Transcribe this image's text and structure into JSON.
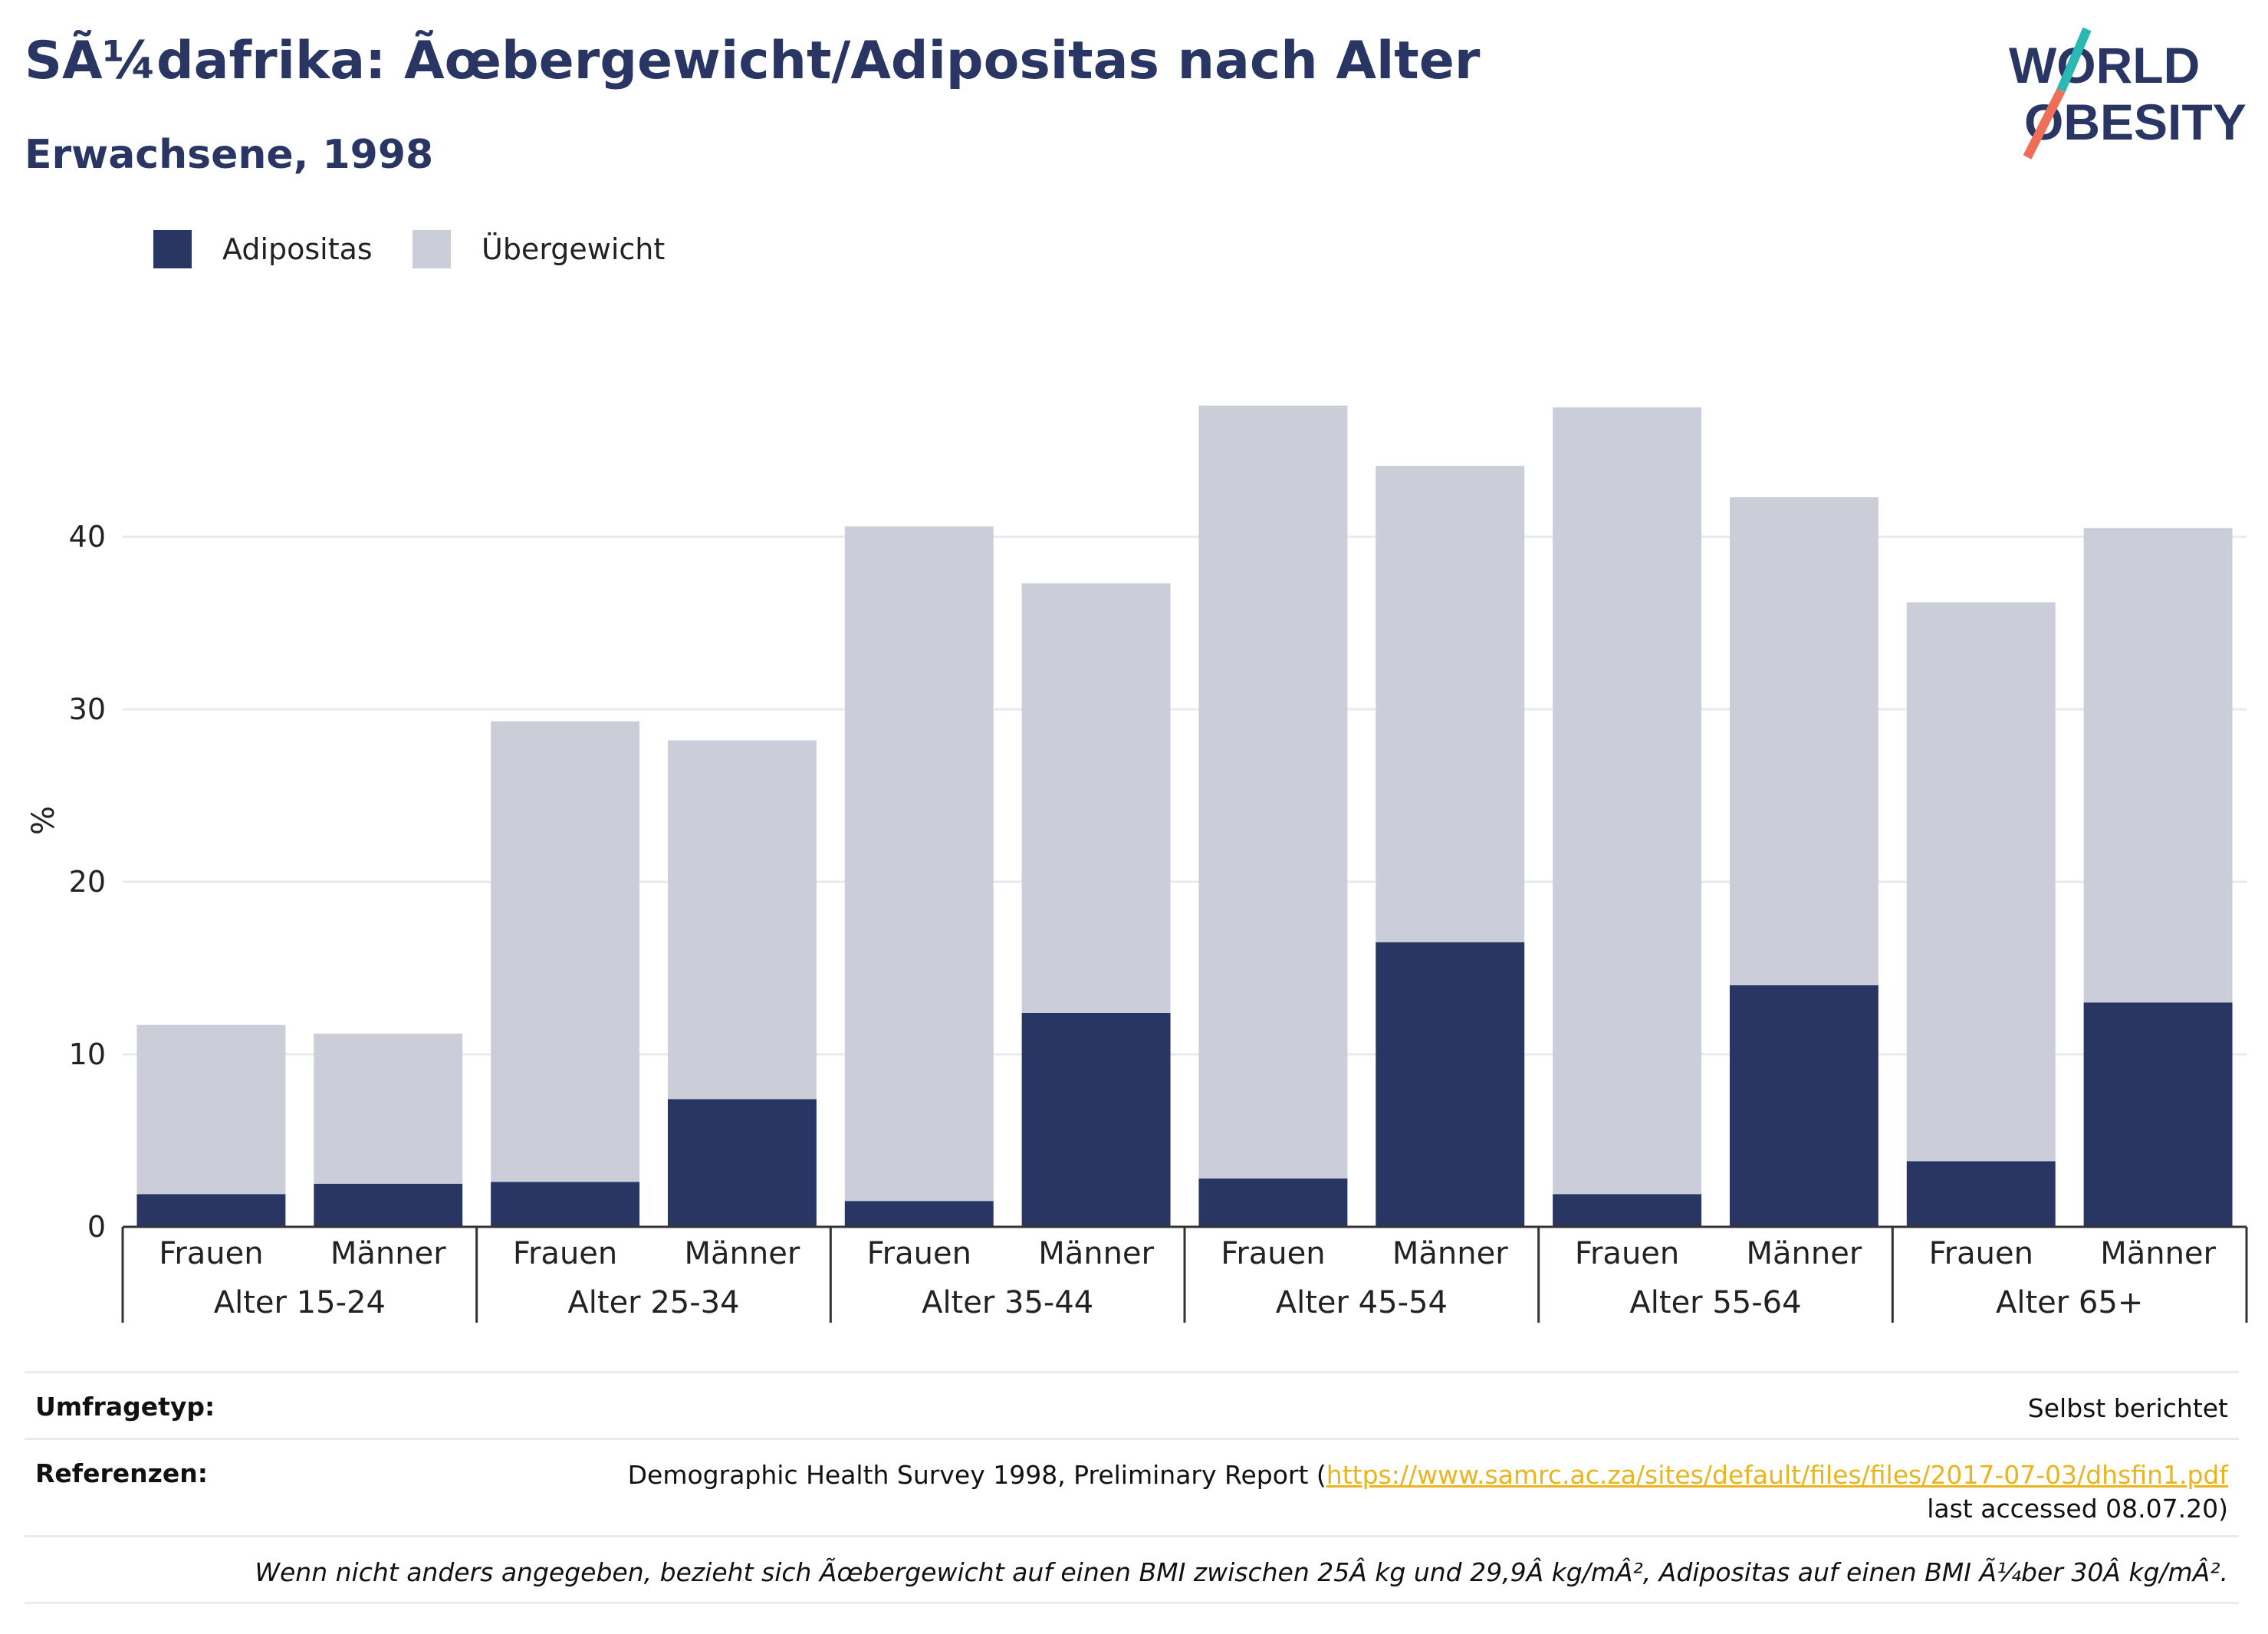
{
  "header": {
    "title": "SÃ¼dafrika: Ãœbergewicht/Adipositas nach Alter",
    "subtitle": "Erwachsene, 1998"
  },
  "logo": {
    "line1": "WORLD",
    "line2": "OBESITY",
    "accent_teal": "#2bb7b3",
    "accent_coral": "#ee6f58"
  },
  "colors": {
    "adipositas": "#293562",
    "uebergewicht": "#cbcdd9",
    "axis": "#333333",
    "grid": "#e8eaf0"
  },
  "chart_data": {
    "type": "bar",
    "stacked": true,
    "ylabel": "%",
    "ylim": [
      0,
      48
    ],
    "yticks": [
      0,
      10,
      20,
      30,
      40
    ],
    "grid": true,
    "legend_position": "top-left",
    "categories": [
      {
        "label": "Frauen",
        "group": "Alter 15-24"
      },
      {
        "label": "Männer",
        "group": "Alter 15-24"
      },
      {
        "label": "Frauen",
        "group": "Alter 25-34"
      },
      {
        "label": "Männer",
        "group": "Alter 25-34"
      },
      {
        "label": "Frauen",
        "group": "Alter 35-44"
      },
      {
        "label": "Männer",
        "group": "Alter 35-44"
      },
      {
        "label": "Frauen",
        "group": "Alter 45-54"
      },
      {
        "label": "Männer",
        "group": "Alter 45-54"
      },
      {
        "label": "Frauen",
        "group": "Alter 55-64"
      },
      {
        "label": "Männer",
        "group": "Alter 55-64"
      },
      {
        "label": "Frauen",
        "group": "Alter 65+"
      },
      {
        "label": "Männer",
        "group": "Alter 65+"
      }
    ],
    "groups": [
      "Alter 15-24",
      "Alter 25-34",
      "Alter 35-44",
      "Alter 45-54",
      "Alter 55-64",
      "Alter 65+"
    ],
    "series": [
      {
        "name": "Adipositas",
        "values": [
          1.9,
          2.5,
          2.6,
          7.4,
          1.5,
          12.4,
          2.8,
          16.5,
          1.9,
          14.0,
          3.8,
          13.0
        ]
      },
      {
        "name": "Übergewicht",
        "values": [
          9.8,
          8.7,
          26.7,
          20.8,
          39.1,
          24.9,
          44.8,
          27.6,
          45.6,
          28.3,
          32.4,
          27.5
        ]
      }
    ]
  },
  "footer": {
    "survey_label": "Umfragetyp:",
    "survey_value": "Selbst berichtet",
    "ref_label": "Referenzen:",
    "ref_text": "Demographic Health Survey 1998, Preliminary Report (",
    "ref_link": "https://www.samrc.ac.za/sites/default/files/files/2017-07-03/dhsfin1.pdf",
    "ref_tail": " last accessed 08.07.20)",
    "note": "Wenn nicht anders angegeben, bezieht sich Ãœbergewicht auf einen BMI zwischen 25Â kg und 29,9Â kg/mÂ², Adipositas auf einen BMI Ã¼ber 30Â kg/mÂ²."
  }
}
